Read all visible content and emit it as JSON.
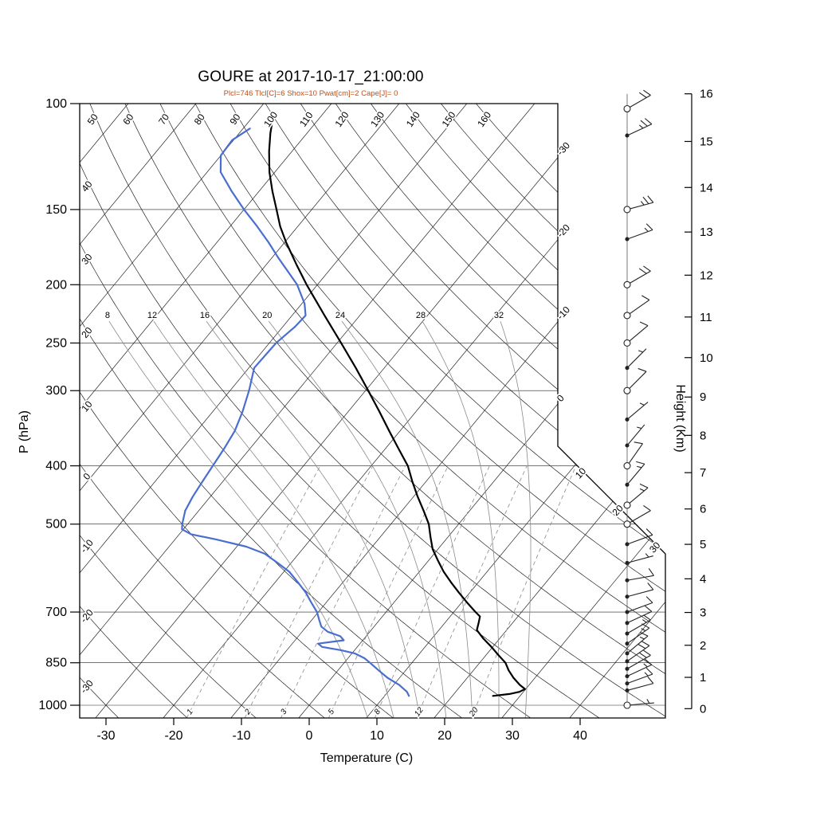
{
  "title": "GOURE at 2017-10-17_21:00:00",
  "subtitle": "Plcl=746 Tlcl[C]=6 Shox=10 Pwat[cm]=2 Cape[J]= 0",
  "axes": {
    "pressure_label": "P (hPa)",
    "temp_label": "Temperature (C)",
    "height_label": "Height (Km)"
  },
  "chart_data": {
    "type": "skewt_log_p_sounding",
    "station": "GOURE",
    "valid_time": "2017-10-17_21:00:00",
    "indices": {
      "Plcl": 746,
      "Tlcl_C": 6,
      "Shox": 10,
      "Pwat_cm": 2,
      "Cape_J": 0
    },
    "pressure_axis": {
      "ticks": [
        100,
        150,
        200,
        250,
        300,
        400,
        500,
        700,
        850,
        1000
      ],
      "range": [
        100,
        1050
      ],
      "scale": "log"
    },
    "temperature_axis": {
      "ticks": [
        -30,
        -20,
        -10,
        0,
        10,
        20,
        30,
        40
      ],
      "skew": true
    },
    "height_axis": {
      "ticks": [
        0,
        1,
        2,
        3,
        4,
        5,
        6,
        7,
        8,
        9,
        10,
        11,
        12,
        13,
        14,
        15,
        16
      ]
    },
    "background": {
      "isotherms_c": {
        "start": -110,
        "end": 40,
        "step": 10
      },
      "isotherm_edge_labels": [
        0,
        -10,
        -20,
        -30
      ],
      "isotherm_diagonal_labels": [
        10,
        20,
        30
      ],
      "dry_adiabats_c": {
        "start": -30,
        "end": 160,
        "step": 10
      },
      "moist_adiabats_c": [
        8,
        12,
        16,
        20,
        24,
        28,
        32
      ],
      "mixing_ratio_g_kg": [
        1,
        2,
        3,
        5,
        8,
        12,
        20
      ],
      "horizontal_pressure_lines": [
        100,
        150,
        200,
        250,
        300,
        400,
        500,
        700,
        850,
        1000
      ]
    },
    "temperature_profile": [
      [
        965,
        26.0
      ],
      [
        958,
        28.2
      ],
      [
        950,
        29.4
      ],
      [
        940,
        29.9
      ],
      [
        925,
        28.6
      ],
      [
        900,
        26.8
      ],
      [
        875,
        25.2
      ],
      [
        850,
        23.8
      ],
      [
        825,
        21.8
      ],
      [
        800,
        19.8
      ],
      [
        775,
        17.6
      ],
      [
        750,
        15.6
      ],
      [
        730,
        15.0
      ],
      [
        712,
        14.4
      ],
      [
        700,
        13.2
      ],
      [
        675,
        10.8
      ],
      [
        650,
        8.4
      ],
      [
        625,
        6.0
      ],
      [
        600,
        3.6
      ],
      [
        575,
        1.4
      ],
      [
        550,
        -0.8
      ],
      [
        525,
        -2.6
      ],
      [
        500,
        -4.4
      ],
      [
        475,
        -6.8
      ],
      [
        450,
        -9.4
      ],
      [
        425,
        -12.0
      ],
      [
        400,
        -14.6
      ],
      [
        375,
        -18.0
      ],
      [
        350,
        -21.6
      ],
      [
        325,
        -25.4
      ],
      [
        300,
        -29.6
      ],
      [
        275,
        -34.2
      ],
      [
        250,
        -39.4
      ],
      [
        225,
        -45.2
      ],
      [
        200,
        -51.6
      ],
      [
        185,
        -55.6
      ],
      [
        170,
        -59.8
      ],
      [
        160,
        -62.6
      ],
      [
        150,
        -65.2
      ],
      [
        140,
        -68.0
      ],
      [
        130,
        -70.8
      ],
      [
        120,
        -73.4
      ],
      [
        112,
        -75.4
      ],
      [
        106,
        -76.8
      ]
    ],
    "dewpoint_profile": [
      [
        965,
        13.6
      ],
      [
        950,
        12.8
      ],
      [
        925,
        10.8
      ],
      [
        900,
        8.2
      ],
      [
        875,
        6.0
      ],
      [
        850,
        3.8
      ],
      [
        835,
        2.4
      ],
      [
        820,
        0.4
      ],
      [
        810,
        -2.0
      ],
      [
        800,
        -5.2
      ],
      [
        790,
        -6.2
      ],
      [
        780,
        -2.8
      ],
      [
        768,
        -3.8
      ],
      [
        755,
        -6.2
      ],
      [
        740,
        -7.8
      ],
      [
        720,
        -9.0
      ],
      [
        700,
        -10.2
      ],
      [
        675,
        -12.2
      ],
      [
        650,
        -14.2
      ],
      [
        625,
        -16.6
      ],
      [
        600,
        -19.2
      ],
      [
        580,
        -22.0
      ],
      [
        560,
        -25.0
      ],
      [
        545,
        -28.6
      ],
      [
        530,
        -34.0
      ],
      [
        520,
        -38.2
      ],
      [
        510,
        -40.2
      ],
      [
        500,
        -40.8
      ],
      [
        475,
        -42.0
      ],
      [
        450,
        -42.6
      ],
      [
        425,
        -43.0
      ],
      [
        400,
        -43.4
      ],
      [
        375,
        -43.8
      ],
      [
        350,
        -44.4
      ],
      [
        325,
        -45.6
      ],
      [
        300,
        -47.2
      ],
      [
        275,
        -49.2
      ],
      [
        250,
        -49.0
      ],
      [
        235,
        -48.2
      ],
      [
        225,
        -48.0
      ],
      [
        215,
        -49.6
      ],
      [
        200,
        -53.0
      ],
      [
        190,
        -56.0
      ],
      [
        180,
        -59.2
      ],
      [
        170,
        -62.4
      ],
      [
        160,
        -66.0
      ],
      [
        150,
        -70.0
      ],
      [
        140,
        -74.0
      ],
      [
        130,
        -78.0
      ],
      [
        122,
        -80.0
      ],
      [
        115,
        -80.2
      ],
      [
        110,
        -79.0
      ]
    ],
    "winds_p_kt_dir_sym": [
      [
        102,
        20,
        60,
        "circle"
      ],
      [
        113,
        25,
        65,
        "dot"
      ],
      [
        150,
        25,
        75,
        "circle"
      ],
      [
        168,
        15,
        70,
        "dot"
      ],
      [
        200,
        20,
        60,
        "circle"
      ],
      [
        225,
        10,
        55,
        "circle"
      ],
      [
        250,
        10,
        50,
        "circle"
      ],
      [
        275,
        5,
        45,
        "dot"
      ],
      [
        300,
        10,
        45,
        "circle"
      ],
      [
        335,
        5,
        50,
        "dot"
      ],
      [
        370,
        5,
        40,
        "dot"
      ],
      [
        400,
        10,
        35,
        "circle"
      ],
      [
        430,
        15,
        40,
        "dot"
      ],
      [
        465,
        15,
        50,
        "circle"
      ],
      [
        500,
        10,
        60,
        "circle"
      ],
      [
        540,
        10,
        70,
        "dot"
      ],
      [
        580,
        5,
        75,
        "dot"
      ],
      [
        620,
        10,
        80,
        "dot"
      ],
      [
        660,
        10,
        75,
        "dot"
      ],
      [
        700,
        10,
        70,
        "dot"
      ],
      [
        730,
        10,
        65,
        "dot"
      ],
      [
        760,
        15,
        60,
        "dot"
      ],
      [
        790,
        15,
        55,
        "dot"
      ],
      [
        820,
        15,
        50,
        "dot"
      ],
      [
        845,
        20,
        55,
        "dot"
      ],
      [
        870,
        20,
        60,
        "dot"
      ],
      [
        895,
        15,
        65,
        "dot"
      ],
      [
        920,
        15,
        70,
        "dot"
      ],
      [
        945,
        10,
        75,
        "dot"
      ],
      [
        1000,
        5,
        85,
        "circle"
      ]
    ],
    "colors": {
      "temperature_line": "#000000",
      "dewpoint_line": "#4a6ed0",
      "subtitle_text": "#c24e14",
      "primary_grid": "#222222",
      "secondary_grid": "#8a8a8a",
      "wind_barbs": "#222222"
    }
  }
}
